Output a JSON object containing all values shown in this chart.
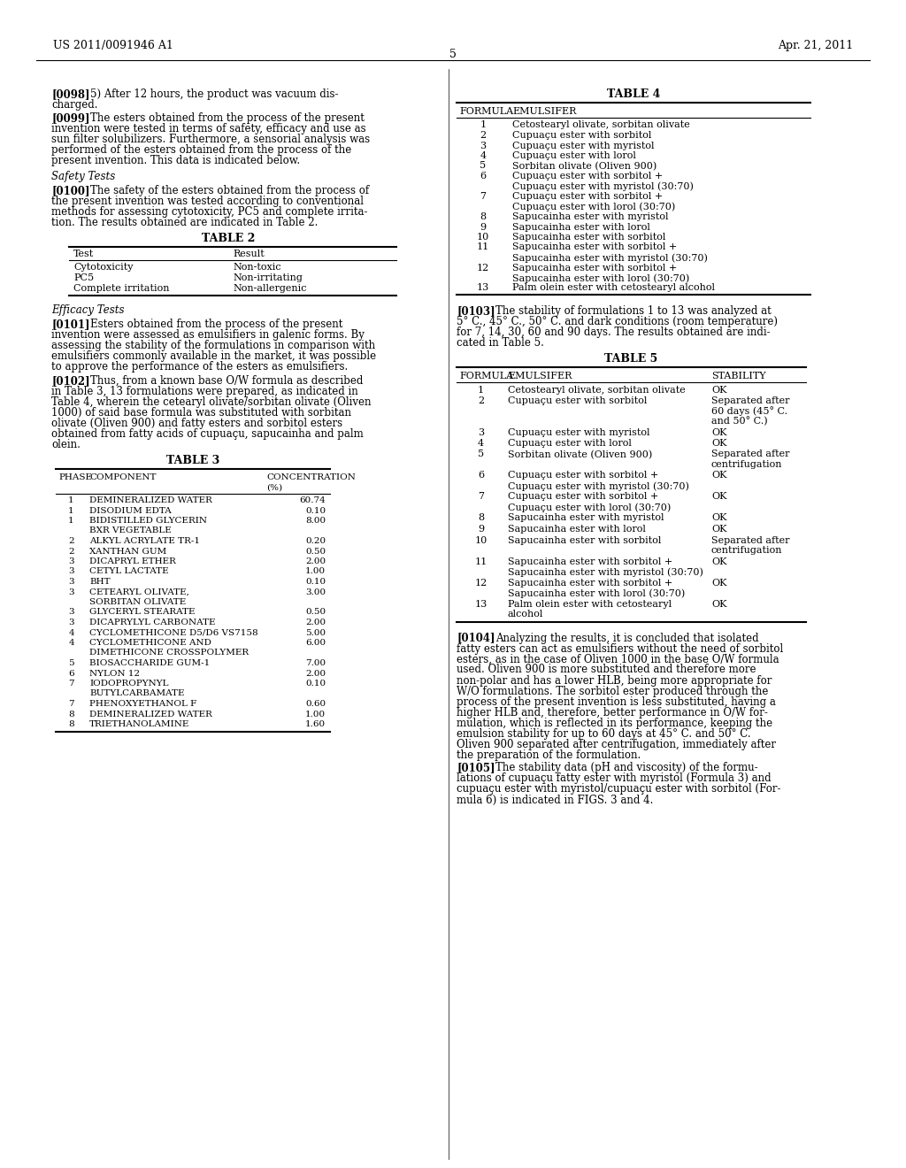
{
  "bg_color": "#ffffff",
  "header_left": "US 2011/0091946 A1",
  "header_right": "Apr. 21, 2011",
  "page_number": "5",
  "left_col": {
    "paragraphs": [
      {
        "tag": "[0098]",
        "text": "5) After 12 hours, the product was vacuum dis-\ncharged."
      },
      {
        "tag": "[0099]",
        "text": "The esters obtained from the process of the present\ninvention were tested in terms of safety, efficacy and use as\nsun filter solubilizers. Furthermore, a sensorial analysis was\nperformed of the esters obtained from the process of the\npresent invention. This data is indicated below."
      },
      {
        "tag": "Safety Tests",
        "text": ""
      },
      {
        "tag": "[0100]",
        "text": "The safety of the esters obtained from the process of\nthe present invention was tested according to conventional\nmethods for assessing cytotoxicity, PC5 and complete irrita-\ntion. The results obtained are indicated in Table 2."
      },
      {
        "tag": "TABLE 2",
        "text": ""
      },
      {
        "tag": "Efficacy Tests",
        "text": ""
      },
      {
        "tag": "[0101]",
        "text": "Esters obtained from the process of the present\ninvention were assessed as emulsifiers in galenic forms. By\nassessing the stability of the formulations in comparison with\nemulsifiers commonly available in the market, it was possible\nto approve the performance of the esters as emulsifiers."
      },
      {
        "tag": "[0102]",
        "text": "Thus, from a known base O/W formula as described\nin Table 3, 13 formulations were prepared, as indicated in\nTable 4, wherein the cetearyl olivate/sorbitan olivate (Oliven\n1000) of said base formula was substituted with sorbitan\nolivate (Oliven 900) and fatty esters and sorbitol esters\nobtained from fatty acids of cupuaçu, sapucainha and palm\nolein."
      },
      {
        "tag": "TABLE 3",
        "text": ""
      }
    ]
  },
  "right_col": {
    "paragraphs": [
      {
        "tag": "TABLE 4",
        "text": ""
      },
      {
        "tag": "[0103]",
        "text": "The stability of formulations 1 to 13 was analyzed at\n5° C., 45° C., 50° C. and dark conditions (room temperature)\nfor 7, 14, 30, 60 and 90 days. The results obtained are indi-\ncated in Table 5."
      },
      {
        "tag": "TABLE 5",
        "text": ""
      },
      {
        "tag": "[0104]",
        "text": "Analyzing the results, it is concluded that isolated\nfatty esters can act as emulsifiers without the need of sorbitol\nesters, as in the case of Oliven 1000 in the base O/W formula\nused. Oliven 900 is more substituted and therefore more\nnon-polar and has a lower HLB, being more appropriate for\nW/O formulations. The sorbitol ester produced through the\nprocess of the present invention is less substituted, having a\nhigher HLB and, therefore, better performance in O/W for-\nmulation, which is reflected in its performance, keeping the\nemulsion stability for up to 60 days at 45° C. and 50° C.\nOliven 900 separated after centrifugation, immediately after\nthe preparation of the formulation."
      },
      {
        "tag": "[0105]",
        "text": "The stability data (pH and viscosity) of the formu-\nlations of cupuaçu fatty ester with myristol (Formula 3) and\ncupuaçu ester with myristol/cupuaçu ester with sorbitol (For-\nmula 6) is indicated in FIGS. 3 and 4."
      }
    ]
  },
  "table2": {
    "title": "TABLE 2",
    "headers": [
      "Test",
      "Result"
    ],
    "rows": [
      [
        "Cytotoxicity",
        "Non-toxic"
      ],
      [
        "PC5",
        "Non-irritating"
      ],
      [
        "Complete irritation",
        "Non-allergenic"
      ]
    ]
  },
  "table3": {
    "title": "TABLE 3",
    "headers": [
      "PHASE",
      "COMPONENT",
      "CONCENTRATION\n(%)"
    ],
    "rows": [
      [
        "1",
        "DEMINERALIZED WATER",
        "60.74"
      ],
      [
        "1",
        "DISODIUM EDTA",
        "0.10"
      ],
      [
        "1",
        "BIDISTILLED GLYCERIN\nBXR VEGETABLE",
        "8.00"
      ],
      [
        "2",
        "ALKYL ACRYLATE TR-1",
        "0.20"
      ],
      [
        "2",
        "XANTHAN GUM",
        "0.50"
      ],
      [
        "3",
        "DICAPRYL ETHER",
        "2.00"
      ],
      [
        "3",
        "CETYL LACTATE",
        "1.00"
      ],
      [
        "3",
        "BHT",
        "0.10"
      ],
      [
        "3",
        "CETEARYL OLIVATE,\nSORBITAN OLIVATE",
        "3.00"
      ],
      [
        "3",
        "GLYCERYL STEARATE",
        "0.50"
      ],
      [
        "3",
        "DICAPRYLYL CARBONATE",
        "2.00"
      ],
      [
        "4",
        "CYCLOMETHICONE D5/D6 VS7158",
        "5.00"
      ],
      [
        "4",
        "CYCLOMETHICONE AND\nDIMETHICONE CROSSPOLYMER",
        "6.00"
      ],
      [
        "5",
        "BIOSACCHARIDE GUM-1",
        "7.00"
      ],
      [
        "6",
        "NYLON 12",
        "2.00"
      ],
      [
        "7",
        "IODOPROPYNYL\nBUTYLCARBAMATE",
        "0.10"
      ],
      [
        "7",
        "PHENOXYETHANOL F",
        "0.60"
      ],
      [
        "8",
        "DEMINERALIZED WATER",
        "1.00"
      ],
      [
        "8",
        "TRIETHANOLAMINE",
        "1.60"
      ]
    ]
  },
  "table4": {
    "title": "TABLE 4",
    "headers": [
      "FORMULA",
      "EMULSIFER"
    ],
    "rows": [
      [
        "1",
        "Cetostearyl olivate, sorbitan olivate"
      ],
      [
        "2",
        "Cupuaçu ester with sorbitol"
      ],
      [
        "3",
        "Cupuaçu ester with myristol"
      ],
      [
        "4",
        "Cupuaçu ester with lorol"
      ],
      [
        "5",
        "Sorbitan olivate (Oliven 900)"
      ],
      [
        "6",
        "Cupuaçu ester with sorbitol +\nCupuaçu ester with myristol (30:70)"
      ],
      [
        "7",
        "Cupuaçu ester with sorbitol +\nCupuaçu ester with lorol (30:70)"
      ],
      [
        "8",
        "Sapucainha ester with myristol"
      ],
      [
        "9",
        "Sapucainha ester with lorol"
      ],
      [
        "10",
        "Sapucainha ester with sorbitol"
      ],
      [
        "11",
        "Sapucainha ester with sorbitol +\nSapucainha ester with myristol (30:70)"
      ],
      [
        "12",
        "Sapucainha ester with sorbitol +\nSapucainha ester with lorol (30:70)"
      ],
      [
        "13",
        "Palm olein ester with cetostearyl alcohol"
      ]
    ]
  },
  "table5": {
    "title": "TABLE 5",
    "headers": [
      "FORMULA",
      "EMULSIFER",
      "STABILITY"
    ],
    "rows": [
      [
        "1",
        "Cetostearyl olivate, sorbitan olivate",
        "OK"
      ],
      [
        "2",
        "Cupuaçu ester with sorbitol",
        "Separated after\n60 days (45° C.\nand 50° C.)"
      ],
      [
        "3",
        "Cupuaçu ester with myristol",
        "OK"
      ],
      [
        "4",
        "Cupuaçu ester with lorol",
        "OK"
      ],
      [
        "5",
        "Sorbitan olivate (Oliven 900)",
        "Separated after\ncentrifugation"
      ],
      [
        "6",
        "Cupuaçu ester with sorbitol +\nCupuaçu ester with myristol (30:70)",
        "OK"
      ],
      [
        "7",
        "Cupuaçu ester with sorbitol +\nCupuaçu ester with lorol (30:70)",
        "OK"
      ],
      [
        "8",
        "Sapucainha ester with myristol",
        "OK"
      ],
      [
        "9",
        "Sapucainha ester with lorol",
        "OK"
      ],
      [
        "10",
        "Sapucainha ester with sorbitol",
        "Separated after\ncentrifugation"
      ],
      [
        "11",
        "Sapucainha ester with sorbitol +\nSapucainha ester with myristol (30:70)",
        "OK"
      ],
      [
        "12",
        "Sapucainha ester with sorbitol +\nSapucainha ester with lorol (30:70)",
        "OK"
      ],
      [
        "13",
        "Palm olein ester with cetostearyl\nalcohol",
        "OK"
      ]
    ]
  }
}
